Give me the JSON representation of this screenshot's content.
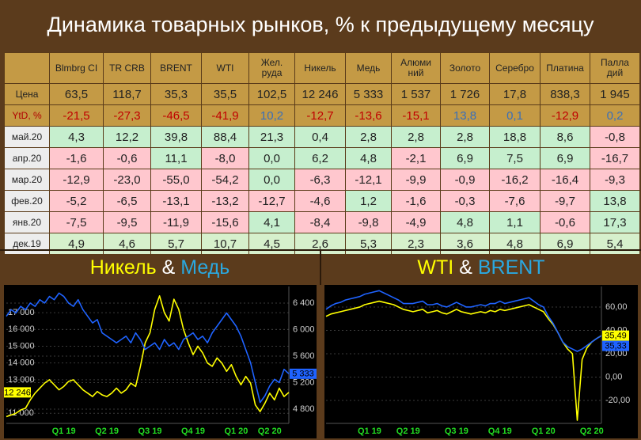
{
  "title": "Динамика товарных рынков, % к предыдущему месяцу",
  "table": {
    "columns": [
      "Blmbrg CI",
      "TR CRB",
      "BRENT",
      "WTI",
      "Жел.\nруда",
      "Никель",
      "Медь",
      "Алюми\nний",
      "Золото",
      "Серебро",
      "Платина",
      "Палла\nдий"
    ],
    "rows": [
      {
        "label": "Цена",
        "cells": [
          "63,5",
          "118,7",
          "35,3",
          "35,5",
          "102,5",
          "12 246",
          "5 333",
          "1 537",
          "1 726",
          "17,8",
          "838,3",
          "1 945"
        ]
      },
      {
        "label": "YtD, %",
        "cells": [
          "-21,5",
          "-27,3",
          "-46,5",
          "-41,9",
          "10,2",
          "-12,7",
          "-13,6",
          "-15,1",
          "13,8",
          "0,1",
          "-12,9",
          "0,2"
        ]
      },
      {
        "label": "май.20",
        "cells": [
          "4,3",
          "12,2",
          "39,8",
          "88,4",
          "21,3",
          "0,4",
          "2,8",
          "2,8",
          "2,8",
          "18,8",
          "8,6",
          "-0,8"
        ]
      },
      {
        "label": "апр.20",
        "cells": [
          "-1,6",
          "-0,6",
          "11,1",
          "-8,0",
          "0,0",
          "6,2",
          "4,8",
          "-2,1",
          "6,9",
          "7,5",
          "6,9",
          "-16,7"
        ]
      },
      {
        "label": "мар.20",
        "cells": [
          "-12,9",
          "-23,0",
          "-55,0",
          "-54,2",
          "0,0",
          "-6,3",
          "-12,1",
          "-9,9",
          "-0,9",
          "-16,2",
          "-16,4",
          "-9,3"
        ]
      },
      {
        "label": "фев.20",
        "cells": [
          "-5,2",
          "-6,5",
          "-13,1",
          "-13,2",
          "-12,7",
          "-4,6",
          "1,2",
          "-1,6",
          "-0,3",
          "-7,6",
          "-9,7",
          "13,8"
        ]
      },
      {
        "label": "янв.20",
        "cells": [
          "-7,5",
          "-9,5",
          "-11,9",
          "-15,6",
          "4,1",
          "-8,4",
          "-9,8",
          "-4,9",
          "4,8",
          "1,1",
          "-0,6",
          "17,3"
        ]
      },
      {
        "label": "дек.19",
        "cells": [
          "4,9",
          "4,6",
          "5,7",
          "10,7",
          "4,5",
          "2,6",
          "5,3",
          "2,3",
          "3,6",
          "4,8",
          "6,9",
          "5,4"
        ]
      }
    ]
  },
  "chart_data": [
    {
      "type": "line",
      "title": [
        {
          "text": "Никель",
          "color": "#ffff00"
        },
        {
          "text": "&",
          "color": "#ffffff"
        },
        {
          "text": "Медь",
          "color": "#2aa8e0"
        }
      ],
      "categories": [
        null,
        null,
        null,
        null,
        null,
        null,
        null,
        null,
        null,
        null,
        null,
        null,
        "Q1 19",
        null,
        null,
        null,
        null,
        null,
        null,
        null,
        null,
        "Q2 19",
        null,
        null,
        null,
        null,
        null,
        null,
        null,
        null,
        "Q3 19",
        null,
        null,
        null,
        null,
        null,
        null,
        null,
        null,
        "Q4 19",
        null,
        null,
        null,
        null,
        null,
        null,
        null,
        null,
        "Q1 20",
        null,
        null,
        null,
        null,
        null,
        null,
        "Q2 20",
        null,
        null,
        null,
        null
      ],
      "ylim": [
        10400,
        18560
      ],
      "yticks": [
        {
          "value": 11000,
          "label": "11 000"
        },
        {
          "value": 13000,
          "label": "13 000"
        },
        {
          "value": 14000,
          "label": "14 000"
        },
        {
          "value": 15000,
          "label": "15 000"
        },
        {
          "value": 16000,
          "label": "16 000"
        },
        {
          "value": 17000,
          "label": "17 000"
        }
      ],
      "y_axis_side": "left",
      "y2lim": [
        4585,
        6650
      ],
      "y2ticks": [
        {
          "value": 4800,
          "label": "4 800"
        },
        {
          "value": 5200,
          "label": "5 200"
        },
        {
          "value": 5600,
          "label": "5 600"
        },
        {
          "value": 6000,
          "label": "6 000"
        },
        {
          "value": 6400,
          "label": "6 400"
        }
      ],
      "grid": true,
      "series": [
        {
          "color": "#ffff00",
          "axis": "y",
          "end_label": "12 246",
          "values": [
            10800,
            10900,
            11000,
            11200,
            11300,
            11800,
            12200,
            12500,
            12800,
            13000,
            12700,
            12400,
            12600,
            12900,
            13000,
            12700,
            12400,
            12200,
            12000,
            12300,
            12100,
            12000,
            12200,
            12500,
            12200,
            12400,
            12800,
            12600,
            13800,
            15200,
            15800,
            17200,
            18000,
            17000,
            16500,
            17800,
            17200,
            16000,
            15200,
            14500,
            15000,
            14600,
            14000,
            13800,
            14300,
            14000,
            13500,
            13900,
            13200,
            12700,
            13200,
            12800,
            11500,
            11100,
            11600,
            12200,
            11800,
            12500,
            12000,
            12246
          ]
        },
        {
          "color": "#1f63ff",
          "axis": "y2",
          "end_label": "5 333",
          "values": [
            6200,
            6300,
            6250,
            6350,
            6300,
            6400,
            6350,
            6450,
            6400,
            6500,
            6450,
            6550,
            6500,
            6400,
            6350,
            6450,
            6300,
            6200,
            6100,
            6150,
            5950,
            5900,
            5850,
            5800,
            5850,
            5900,
            5800,
            5950,
            5850,
            5700,
            5750,
            5800,
            5700,
            5850,
            5750,
            5800,
            5700,
            5850,
            5900,
            5950,
            5850,
            5900,
            5800,
            5950,
            6050,
            6150,
            6250,
            6150,
            6050,
            5900,
            5700,
            5500,
            5200,
            4900,
            5000,
            5150,
            5250,
            5200,
            5400,
            5333
          ]
        }
      ]
    },
    {
      "type": "line",
      "title": [
        {
          "text": "WTI",
          "color": "#ffff00"
        },
        {
          "text": "&",
          "color": "#ffffff"
        },
        {
          "text": "BRENT",
          "color": "#2aa8e0"
        }
      ],
      "categories": [
        null,
        null,
        null,
        null,
        null,
        null,
        null,
        null,
        null,
        "Q1 19",
        null,
        null,
        null,
        null,
        null,
        null,
        null,
        "Q2 19",
        null,
        null,
        null,
        null,
        null,
        null,
        null,
        null,
        null,
        "Q3 19",
        null,
        null,
        null,
        null,
        null,
        null,
        null,
        null,
        "Q4 19",
        null,
        null,
        null,
        null,
        null,
        null,
        null,
        null,
        "Q1 20",
        null,
        null,
        null,
        null,
        null,
        null,
        null,
        null,
        null,
        "Q2 20",
        null,
        null
      ],
      "ylim": [
        -39.7,
        77.6
      ],
      "yticks": [
        {
          "value": 60,
          "label": "60,00"
        },
        {
          "value": 40,
          "label": "40,00"
        },
        {
          "value": 20,
          "label": "20,00"
        },
        {
          "value": 0,
          "label": "0,00"
        },
        {
          "value": -20,
          "label": "-20,00"
        }
      ],
      "y_axis_side": "right",
      "grid": true,
      "series": [
        {
          "color": "#ffff00",
          "axis": "y",
          "end_label": "35,49",
          "values": [
            52,
            54,
            55,
            56,
            57,
            58,
            59,
            60,
            62,
            63,
            64,
            65,
            64,
            63,
            62,
            60,
            58,
            57,
            56,
            57,
            58,
            55,
            56,
            57,
            55,
            54,
            56,
            58,
            56,
            55,
            54,
            55,
            56,
            55,
            57,
            56,
            58,
            57,
            58,
            59,
            60,
            61,
            62,
            60,
            58,
            56,
            50,
            45,
            38,
            30,
            24,
            20,
            -37,
            15,
            25,
            30,
            33,
            35.49
          ]
        },
        {
          "color": "#1f63ff",
          "axis": "y",
          "end_label": "35,33",
          "values": [
            58,
            61,
            63,
            64,
            66,
            67,
            68,
            69,
            71,
            72,
            73,
            74,
            72,
            70,
            68,
            66,
            63,
            63,
            63,
            64,
            65,
            62,
            62,
            63,
            61,
            60,
            62,
            64,
            62,
            60,
            60,
            61,
            62,
            61,
            63,
            63,
            65,
            63,
            64,
            65,
            66,
            67,
            68,
            65,
            62,
            60,
            52,
            46,
            38,
            30,
            26,
            24,
            22,
            24,
            27,
            30,
            33,
            35.33
          ]
        }
      ]
    }
  ]
}
